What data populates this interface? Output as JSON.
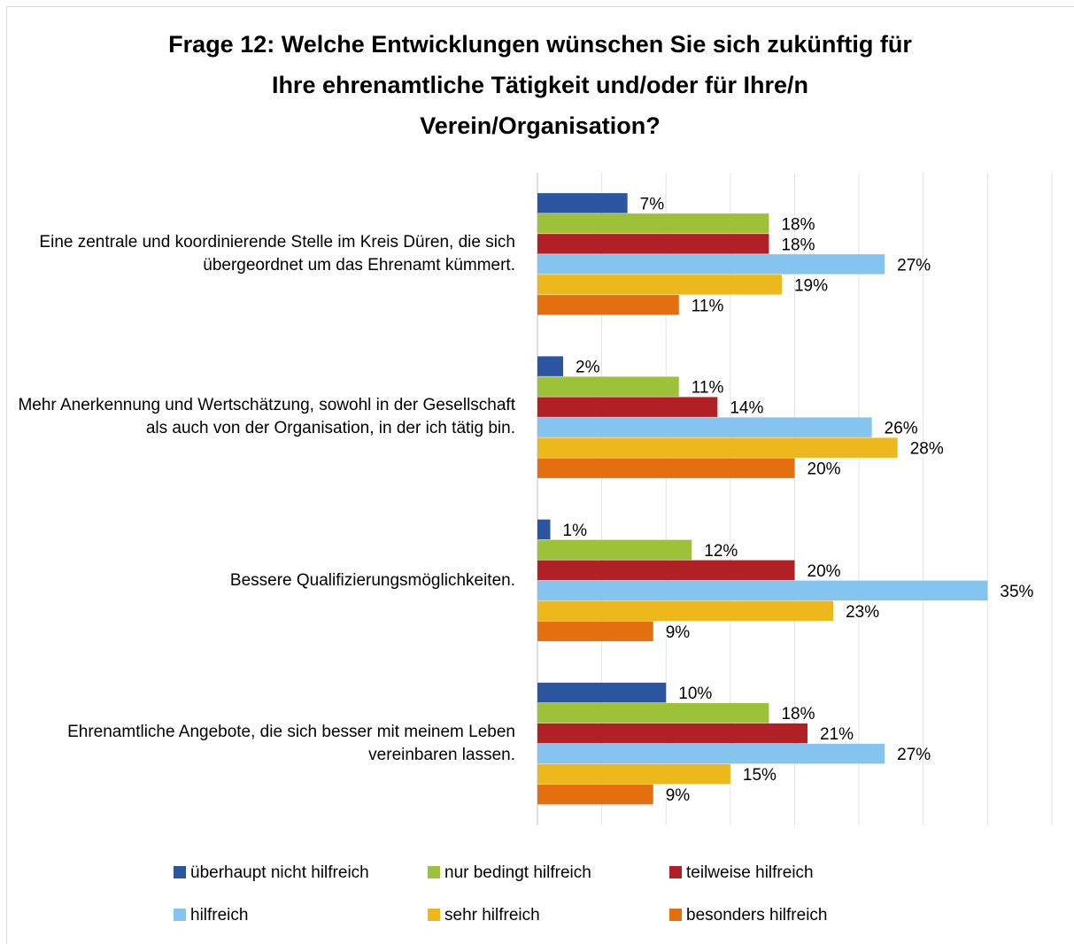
{
  "chart_data": {
    "type": "bar",
    "orientation": "horizontal",
    "title": [
      "Frage 12: Welche Entwicklungen wünschen Sie sich zukünftig für",
      "Ihre ehrenamtliche Tätigkeit und/oder für Ihre/n",
      "Verein/Organisation?"
    ],
    "categories": [
      "Eine zentrale und koordinierende Stelle im Kreis Düren, die sich übergeordnet um das Ehrenamt kümmert.",
      "Mehr Anerkennung und Wertschätzung, sowohl in der Gesellschaft als auch von der Organisation, in der ich tätig bin.",
      "Bessere Qualifizierungsmöglichkeiten.",
      "Ehrenamtliche Angebote, die sich besser mit meinem Leben vereinbaren lassen."
    ],
    "series": [
      {
        "name": "überhaupt nicht hilfreich",
        "color": "#2b55a0",
        "values": [
          7,
          2,
          1,
          10
        ],
        "value_labels": [
          "7%",
          "2%",
          "1%",
          "10%"
        ]
      },
      {
        "name": "nur bedingt hilfreich",
        "color": "#9dc23a",
        "values": [
          18,
          11,
          12,
          18
        ],
        "value_labels": [
          "18%",
          "11%",
          "12%",
          "18%"
        ]
      },
      {
        "name": "teilweise hilfreich",
        "color": "#b02025",
        "values": [
          18,
          14,
          20,
          21
        ],
        "value_labels": [
          "18%",
          "14%",
          "20%",
          "21%"
        ]
      },
      {
        "name": "hilfreich",
        "color": "#85c4ef",
        "values": [
          27,
          26,
          35,
          27
        ],
        "value_labels": [
          "27%",
          "26%",
          "35%",
          "27%"
        ]
      },
      {
        "name": "sehr hilfreich",
        "color": "#ecb81c",
        "values": [
          19,
          28,
          23,
          15
        ],
        "value_labels": [
          "19%",
          "28%",
          "23%",
          "15%"
        ]
      },
      {
        "name": "besonders hilfreich",
        "color": "#e36f0e",
        "values": [
          11,
          20,
          9,
          9
        ],
        "value_labels": [
          "11%",
          "20%",
          "9%",
          "9%"
        ]
      }
    ],
    "xlim": [
      0,
      40
    ],
    "xticks": [
      0,
      5,
      10,
      15,
      20,
      25,
      30,
      35,
      40
    ],
    "grid": true,
    "legend": "bottom"
  }
}
